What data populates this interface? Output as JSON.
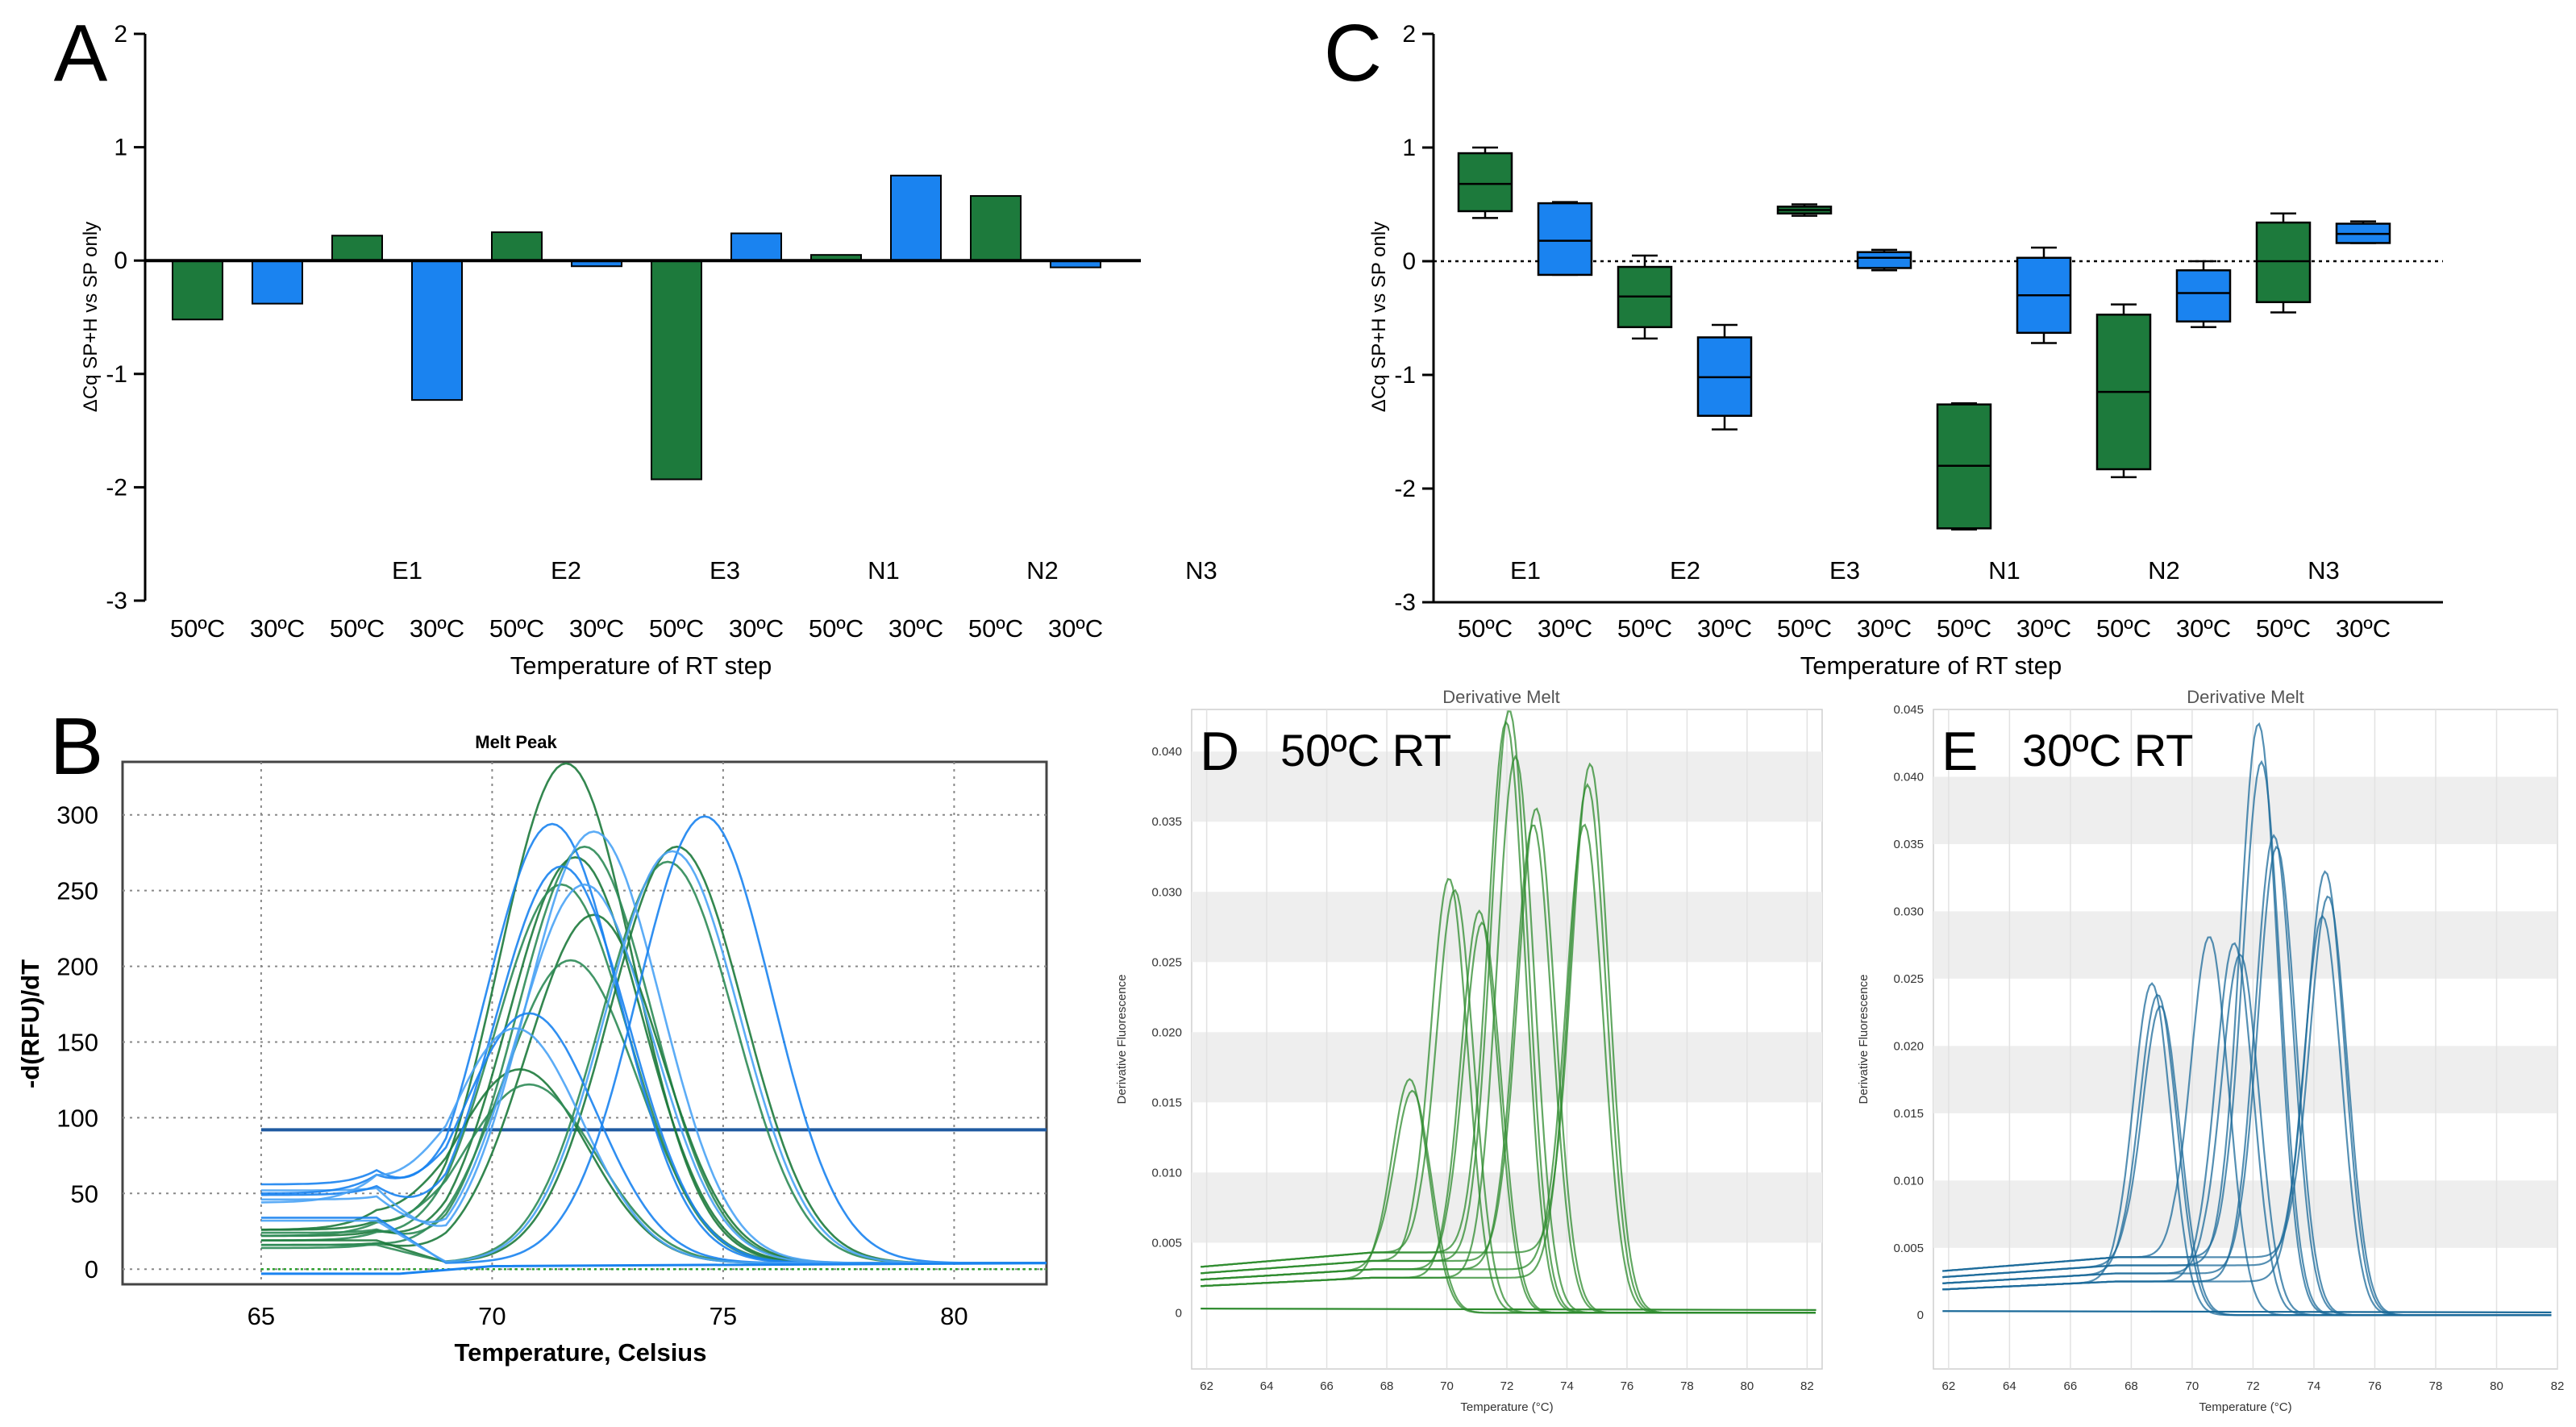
{
  "panel_letters": {
    "A": "A",
    "B": "B",
    "C": "C",
    "D": "D",
    "E": "E"
  },
  "colors": {
    "green": "#1d7a3c",
    "blue": "#1a83f0",
    "d_green": "#2e8b2e",
    "e_blue": "#1b6a99",
    "threshold": "#1f5aa0"
  },
  "chart_data": [
    {
      "id": "A",
      "type": "bar",
      "ylabel": "ΔCq SP+H vs SP only",
      "xlabel": "Temperature of RT step",
      "ylim": [
        -3,
        2
      ],
      "yticks": [
        "-3",
        "-2",
        "-1",
        "0",
        "1",
        "2"
      ],
      "categories": [
        "50ºC",
        "30ºC",
        "50ºC",
        "30ºC",
        "50ºC",
        "30ºC",
        "50ºC",
        "30ºC",
        "50ºC",
        "30ºC",
        "50ºC",
        "30ºC"
      ],
      "values": [
        -0.52,
        -0.38,
        0.22,
        -1.23,
        0.25,
        -0.05,
        -1.93,
        0.24,
        0.05,
        0.75,
        0.57,
        -0.06
      ],
      "series_colors": [
        "green",
        "blue",
        "green",
        "blue",
        "green",
        "blue",
        "green",
        "blue",
        "green",
        "blue",
        "green",
        "blue"
      ],
      "groups": [
        "E1",
        "E2",
        "E3",
        "N1",
        "N2",
        "N3"
      ]
    },
    {
      "id": "C",
      "type": "box",
      "ylabel": "ΔCq SP+H vs SP only",
      "xlabel": "Temperature of RT step",
      "ylim": [
        -3,
        2
      ],
      "yticks": [
        "-3",
        "-2",
        "-1",
        "0",
        "1",
        "2"
      ],
      "categories": [
        "50ºC",
        "30ºC",
        "50ºC",
        "30ºC",
        "50ºC",
        "30ºC",
        "50ºC",
        "30ºC",
        "50ºC",
        "30ºC",
        "50ºC",
        "30ºC"
      ],
      "groups": [
        "E1",
        "E2",
        "E3",
        "N1",
        "N2",
        "N3"
      ],
      "boxes": [
        {
          "min": 0.38,
          "q1": 0.44,
          "median": 0.68,
          "q3": 0.95,
          "max": 1.0
        },
        {
          "min": -0.12,
          "q1": -0.12,
          "median": 0.18,
          "q3": 0.51,
          "max": 0.52
        },
        {
          "min": -0.68,
          "q1": -0.58,
          "median": -0.31,
          "q3": -0.05,
          "max": 0.05
        },
        {
          "min": -1.48,
          "q1": -1.36,
          "median": -1.02,
          "q3": -0.67,
          "max": -0.56
        },
        {
          "min": 0.4,
          "q1": 0.42,
          "median": 0.45,
          "q3": 0.48,
          "max": 0.5
        },
        {
          "min": -0.08,
          "q1": -0.06,
          "median": 0.03,
          "q3": 0.08,
          "max": 0.1
        },
        {
          "min": -2.36,
          "q1": -2.35,
          "median": -1.8,
          "q3": -1.26,
          "max": -1.25
        },
        {
          "min": -0.72,
          "q1": -0.63,
          "median": -0.3,
          "q3": 0.03,
          "max": 0.12
        },
        {
          "min": -1.9,
          "q1": -1.83,
          "median": -1.15,
          "q3": -0.47,
          "max": -0.38
        },
        {
          "min": -0.58,
          "q1": -0.53,
          "median": -0.28,
          "q3": -0.08,
          "max": 0.0
        },
        {
          "min": -0.45,
          "q1": -0.36,
          "median": 0.0,
          "q3": 0.34,
          "max": 0.42
        },
        {
          "min": 0.16,
          "q1": 0.16,
          "median": 0.24,
          "q3": 0.33,
          "max": 0.35
        }
      ]
    },
    {
      "id": "B",
      "type": "line",
      "title": "Melt Peak",
      "xlabel": "Temperature, Celsius",
      "ylabel": "-d(RFU)/dT",
      "xlim": [
        62,
        82
      ],
      "ylim": [
        -10,
        335
      ],
      "xticks": [
        "65",
        "70",
        "75",
        "80"
      ],
      "yticks": [
        "0",
        "50",
        "100",
        "150",
        "200",
        "250",
        "300"
      ],
      "threshold": 92,
      "series": [
        {
          "color": "green",
          "center": 71.6,
          "peak": 330,
          "base": 22
        },
        {
          "color": "green",
          "center": 72.0,
          "peak": 275,
          "base": 20
        },
        {
          "color": "green",
          "center": 71.8,
          "peak": 268,
          "base": 18
        },
        {
          "color": "green",
          "center": 71.5,
          "peak": 250,
          "base": 15
        },
        {
          "color": "green",
          "center": 72.2,
          "peak": 230,
          "base": 12
        },
        {
          "color": "green",
          "center": 71.7,
          "peak": 200,
          "base": 10
        },
        {
          "color": "green",
          "center": 70.6,
          "peak": 128,
          "base": 22
        },
        {
          "color": "green",
          "center": 70.8,
          "peak": 118,
          "base": 18
        },
        {
          "color": "green",
          "center": 74.0,
          "peak": 275,
          "base": 15
        },
        {
          "color": "green",
          "center": 73.8,
          "peak": 265,
          "base": 12
        },
        {
          "color": "blue",
          "center": 71.3,
          "peak": 290,
          "base": 52
        },
        {
          "color": "blue",
          "center": 72.2,
          "peak": 285,
          "base": 48
        },
        {
          "color": "blue",
          "center": 71.5,
          "peak": 262,
          "base": 45
        },
        {
          "color": "blue",
          "center": 72.0,
          "peak": 250,
          "base": 42
        },
        {
          "color": "blue",
          "center": 70.8,
          "peak": 165,
          "base": 46
        },
        {
          "color": "blue",
          "center": 70.5,
          "peak": 155,
          "base": 40
        },
        {
          "color": "blue",
          "center": 74.6,
          "peak": 295,
          "base": 30
        },
        {
          "color": "blue",
          "center": 73.9,
          "peak": 272,
          "base": 28
        }
      ]
    },
    {
      "id": "D",
      "type": "line",
      "title": "Derivative Melt",
      "subtitle": "50ºC RT",
      "xlabel": "Temperature (°C)",
      "ylabel": "Derivative Fluorescence",
      "xlim": [
        61.5,
        82.5
      ],
      "ylim": [
        -0.004,
        0.043
      ],
      "xticks": [
        "62",
        "64",
        "66",
        "68",
        "70",
        "72",
        "74",
        "76",
        "78",
        "80",
        "82"
      ],
      "yticks": [
        "0",
        "0.005",
        "0.010",
        "0.015",
        "0.020",
        "0.025",
        "0.030",
        "0.035",
        "0.040"
      ],
      "peaks": [
        {
          "center": 68.8,
          "peak": 0.016
        },
        {
          "center": 68.9,
          "peak": 0.015
        },
        {
          "center": 70.1,
          "peak": 0.03
        },
        {
          "center": 70.3,
          "peak": 0.029
        },
        {
          "center": 71.1,
          "peak": 0.028
        },
        {
          "center": 71.2,
          "peak": 0.027
        },
        {
          "center": 72.1,
          "peak": 0.042
        },
        {
          "center": 72.0,
          "peak": 0.041
        },
        {
          "center": 72.3,
          "peak": 0.039
        },
        {
          "center": 72.9,
          "peak": 0.034
        },
        {
          "center": 73.0,
          "peak": 0.035
        },
        {
          "center": 74.8,
          "peak": 0.038
        },
        {
          "center": 74.7,
          "peak": 0.037
        },
        {
          "center": 74.6,
          "peak": 0.034
        }
      ]
    },
    {
      "id": "E",
      "type": "line",
      "title": "Derivative Melt",
      "subtitle": "30ºC RT",
      "xlabel": "Temperature (°C)",
      "ylabel": "Derivative Fluorescence",
      "xlim": [
        61.5,
        82
      ],
      "ylim": [
        -0.004,
        0.045
      ],
      "xticks": [
        "62",
        "64",
        "66",
        "68",
        "70",
        "72",
        "74",
        "76",
        "78",
        "80",
        "82"
      ],
      "yticks": [
        "0",
        "0.005",
        "0.010",
        "0.015",
        "0.020",
        "0.025",
        "0.030",
        "0.035",
        "0.040",
        "0.045"
      ],
      "peaks": [
        {
          "center": 68.7,
          "peak": 0.024
        },
        {
          "center": 68.9,
          "peak": 0.023
        },
        {
          "center": 69.0,
          "peak": 0.022
        },
        {
          "center": 70.6,
          "peak": 0.027
        },
        {
          "center": 71.4,
          "peak": 0.027
        },
        {
          "center": 71.6,
          "peak": 0.026
        },
        {
          "center": 72.2,
          "peak": 0.043
        },
        {
          "center": 72.3,
          "peak": 0.04
        },
        {
          "center": 72.7,
          "peak": 0.035
        },
        {
          "center": 72.8,
          "peak": 0.034
        },
        {
          "center": 74.4,
          "peak": 0.032
        },
        {
          "center": 74.5,
          "peak": 0.03
        },
        {
          "center": 74.3,
          "peak": 0.029
        }
      ]
    }
  ]
}
